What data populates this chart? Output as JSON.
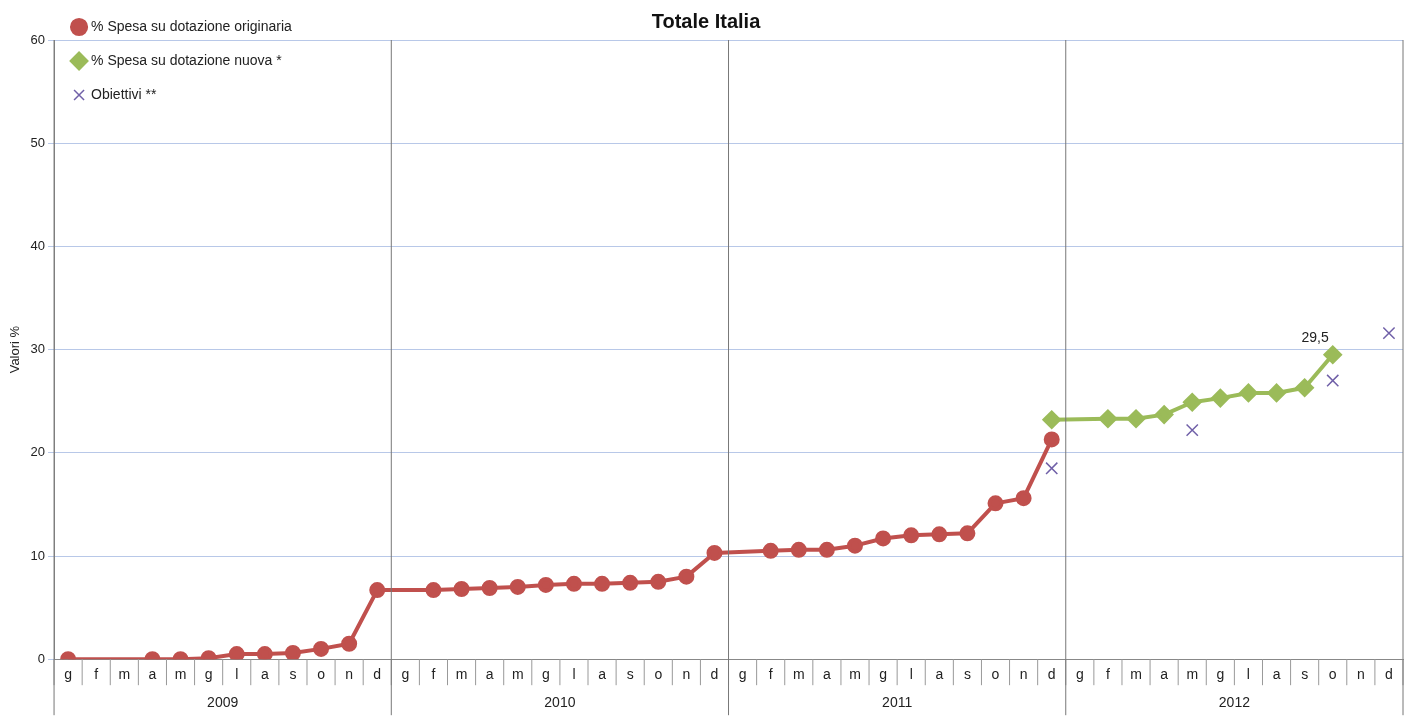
{
  "chart_data": {
    "type": "line",
    "title": "Totale Italia",
    "ylabel": "Valori %",
    "categories": [
      "g",
      "f",
      "m",
      "a",
      "m",
      "g",
      "l",
      "a",
      "s",
      "o",
      "n",
      "d",
      "g",
      "f",
      "m",
      "a",
      "m",
      "g",
      "l",
      "a",
      "s",
      "o",
      "n",
      "d",
      "g",
      "f",
      "m",
      "a",
      "m",
      "g",
      "l",
      "a",
      "s",
      "o",
      "n",
      "d",
      "g",
      "f",
      "m",
      "a",
      "m",
      "g",
      "l",
      "a",
      "s",
      "o",
      "n",
      "d"
    ],
    "annotations": [
      "2009",
      "2010",
      "2011",
      "2012"
    ],
    "ylim": [
      0,
      60
    ],
    "yticks": [
      0,
      10,
      20,
      30,
      40,
      50,
      60
    ],
    "grid": "y",
    "legend": "top left",
    "series": [
      {
        "name": "% Spesa su dotazione originaria",
        "marker": "circle",
        "color": "#c0504d",
        "values": [
          0,
          null,
          null,
          0,
          0,
          0.1,
          0.5,
          0.5,
          0.6,
          1.0,
          1.5,
          6.7,
          null,
          6.7,
          6.8,
          6.9,
          7.0,
          7.2,
          7.3,
          7.3,
          7.4,
          7.5,
          8.0,
          10.3,
          null,
          10.5,
          10.6,
          10.6,
          11.0,
          11.7,
          12.0,
          12.1,
          12.2,
          15.1,
          15.6,
          21.3,
          null,
          null,
          null,
          null,
          null,
          null,
          null,
          null,
          null,
          null,
          null,
          null
        ]
      },
      {
        "name": "% Spesa su dotazione nuova *",
        "marker": "diamond",
        "color": "#9bbb59",
        "values": [
          null,
          null,
          null,
          null,
          null,
          null,
          null,
          null,
          null,
          null,
          null,
          null,
          null,
          null,
          null,
          null,
          null,
          null,
          null,
          null,
          null,
          null,
          null,
          null,
          null,
          null,
          null,
          null,
          null,
          null,
          null,
          null,
          null,
          null,
          null,
          23.2,
          null,
          23.3,
          23.3,
          23.7,
          24.9,
          25.3,
          25.8,
          25.8,
          26.3,
          29.5,
          null,
          null
        ],
        "value_labels": [
          null,
          null,
          null,
          null,
          null,
          null,
          null,
          null,
          null,
          null,
          null,
          null,
          null,
          null,
          null,
          null,
          null,
          null,
          null,
          null,
          null,
          null,
          null,
          null,
          null,
          null,
          null,
          null,
          null,
          null,
          null,
          null,
          null,
          null,
          null,
          null,
          null,
          null,
          null,
          null,
          null,
          null,
          null,
          null,
          null,
          "29,5",
          null,
          null
        ]
      },
      {
        "name": "Obiettivi **",
        "type": "scatter",
        "marker": "cross",
        "color": "#7060a8",
        "values": [
          null,
          null,
          null,
          null,
          null,
          null,
          null,
          null,
          null,
          null,
          null,
          null,
          null,
          null,
          null,
          null,
          null,
          null,
          null,
          null,
          null,
          null,
          null,
          null,
          null,
          null,
          null,
          null,
          null,
          null,
          null,
          null,
          null,
          null,
          null,
          18.5,
          null,
          null,
          null,
          null,
          22.2,
          null,
          null,
          null,
          null,
          27.0,
          null,
          31.6
        ]
      }
    ]
  }
}
